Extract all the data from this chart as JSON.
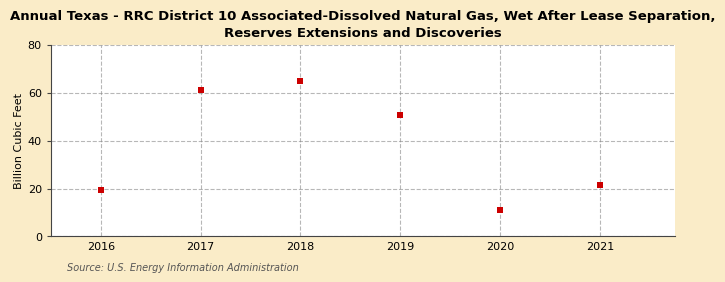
{
  "title": "Annual Texas - RRC District 10 Associated-Dissolved Natural Gas, Wet After Lease Separation,\nReserves Extensions and Discoveries",
  "ylabel": "Billion Cubic Feet",
  "source": "Source: U.S. Energy Information Administration",
  "bg_color": "#faecc8",
  "plot_bg_color": "#ffffff",
  "years": [
    2016,
    2017,
    2018,
    2019,
    2020,
    2021
  ],
  "values": [
    19.5,
    61.0,
    65.0,
    50.5,
    11.0,
    21.5
  ],
  "marker_color": "#cc0000",
  "marker_size": 18,
  "marker_style": "s",
  "ylim": [
    0,
    80
  ],
  "yticks": [
    0,
    20,
    40,
    60,
    80
  ],
  "grid_color": "#888888",
  "grid_style": "--",
  "grid_alpha": 0.6,
  "grid_lw": 0.8,
  "title_fontsize": 9.5,
  "ylabel_fontsize": 8,
  "tick_fontsize": 8,
  "source_fontsize": 7,
  "xlim_left": 2015.5,
  "xlim_right": 2021.75
}
